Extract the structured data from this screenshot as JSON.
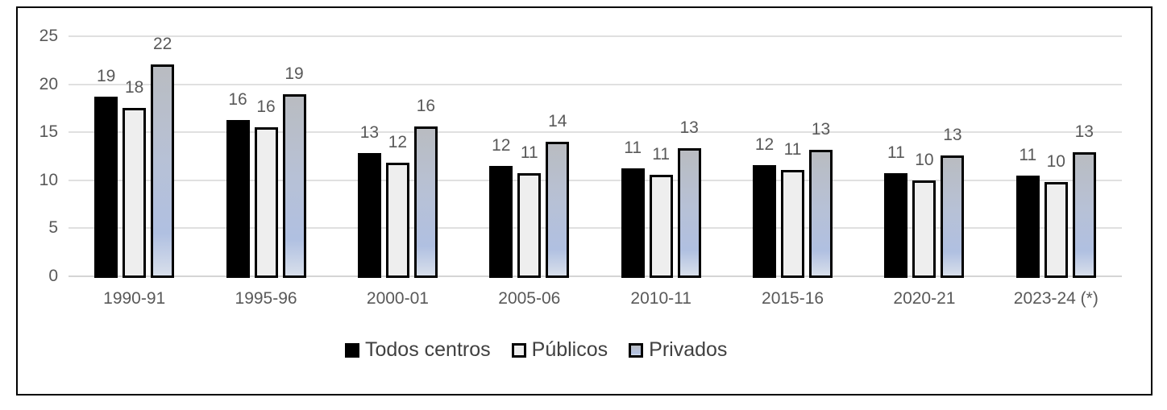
{
  "chart_data": {
    "type": "bar",
    "title": "",
    "xlabel": "",
    "ylabel": "",
    "categories": [
      "1990-91",
      "1995-96",
      "2000-01",
      "2005-06",
      "2010-11",
      "2015-16",
      "2020-21",
      "2023-24 (*)"
    ],
    "series": [
      {
        "name": "Todos centros",
        "fill": "#000000",
        "border": "#000000",
        "values": [
          18.7,
          16.3,
          12.8,
          11.5,
          11.2,
          11.6,
          10.7,
          10.5
        ],
        "labels": [
          "19",
          "16",
          "13",
          "12",
          "11",
          "12",
          "11",
          "11"
        ]
      },
      {
        "name": "Públicos",
        "fill": "#eeeeee",
        "border": "#000000",
        "values": [
          17.5,
          15.5,
          11.8,
          10.7,
          10.6,
          11.1,
          10.0,
          9.8
        ],
        "labels": [
          "18",
          "16",
          "12",
          "11",
          "11",
          "11",
          "10",
          "10"
        ]
      },
      {
        "name": "Privados",
        "gradient": [
          "#b9bcc1",
          "#b7c1d6",
          "#b0c0e1",
          "#d8dfeb"
        ],
        "gradient_stops": [
          0,
          45,
          80,
          100
        ],
        "border": "#000000",
        "values": [
          22.1,
          19.0,
          15.6,
          14.0,
          13.3,
          13.2,
          12.6,
          12.9
        ],
        "labels": [
          "22",
          "19",
          "16",
          "14",
          "13",
          "13",
          "13",
          "13"
        ]
      }
    ],
    "y_ticks": [
      0,
      5,
      10,
      15,
      20,
      25
    ],
    "ylim": [
      0,
      25
    ],
    "grid": true,
    "legend_position": "bottom",
    "colors": {
      "axis_text": "#595959",
      "data_label": "#595959",
      "legend_text": "#404040",
      "gridline": "#e0e0e0",
      "baseline": "#d5d5d5",
      "frame_border": "#000000",
      "background": "#ffffff"
    }
  }
}
